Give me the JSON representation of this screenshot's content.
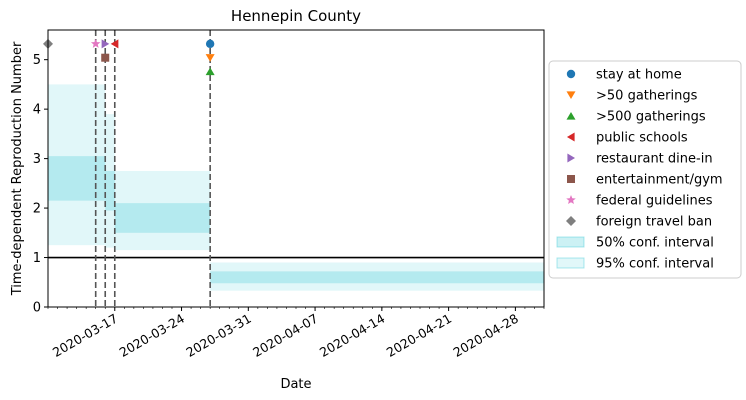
{
  "chart_data": {
    "type": "line",
    "title": "Hennepin County",
    "xlabel": "Date",
    "ylabel": "Time-dependent Reproduction Number",
    "xlim": [
      "2020-03-10",
      "2020-05-01"
    ],
    "ylim": [
      0,
      5.6
    ],
    "x_ticks": [
      "2020-03-17",
      "2020-03-24",
      "2020-03-31",
      "2020-04-07",
      "2020-04-14",
      "2020-04-21",
      "2020-04-28"
    ],
    "y_ticks": [
      0,
      1,
      2,
      3,
      4,
      5
    ],
    "reference_line_y": 1,
    "intervention_lines": [
      "2020-03-15",
      "2020-03-16",
      "2020-03-17",
      "2020-03-27"
    ],
    "interventions": [
      {
        "name": "stay at home",
        "date": "2020-03-27",
        "y": 5.32,
        "marker": "circle",
        "color": "#1f77b4"
      },
      {
        "name": ">50 gatherings",
        "date": "2020-03-27",
        "y": 5.04,
        "marker": "triangle-down",
        "color": "#ff7f0e"
      },
      {
        "name": ">500 gatherings",
        "date": "2020-03-27",
        "y": 4.76,
        "marker": "triangle-up",
        "color": "#2ca02c"
      },
      {
        "name": "public schools",
        "date": "2020-03-17",
        "y": 5.32,
        "marker": "triangle-left",
        "color": "#d62728"
      },
      {
        "name": "restaurant dine-in",
        "date": "2020-03-16",
        "y": 5.32,
        "marker": "triangle-right",
        "color": "#9467bd"
      },
      {
        "name": "entertainment/gym",
        "date": "2020-03-16",
        "y": 5.04,
        "marker": "square",
        "color": "#8c564b"
      },
      {
        "name": "federal guidelines",
        "date": "2020-03-15",
        "y": 5.32,
        "marker": "star",
        "color": "#e377c2"
      },
      {
        "name": "foreign travel ban",
        "date": "2020-03-10",
        "y": 5.32,
        "marker": "diamond",
        "color": "#7f7f7f"
      }
    ],
    "ci_color": "#17becf",
    "segments": [
      {
        "start": "2020-03-10",
        "end": "2020-03-16",
        "ci50": [
          2.15,
          3.05
        ],
        "ci95": [
          1.25,
          4.5
        ]
      },
      {
        "start": "2020-03-16",
        "end": "2020-03-17",
        "ci50": [
          1.95,
          2.75
        ],
        "ci95": [
          1.2,
          3.9
        ]
      },
      {
        "start": "2020-03-17",
        "end": "2020-03-27",
        "ci50": [
          1.5,
          2.1
        ],
        "ci95": [
          1.15,
          2.75
        ]
      },
      {
        "start": "2020-03-27",
        "end": "2020-05-01",
        "ci50": [
          0.48,
          0.72
        ],
        "ci95": [
          0.33,
          0.9
        ]
      }
    ],
    "legend": {
      "placement": "right",
      "entries": [
        "stay at home",
        ">50 gatherings",
        ">500 gatherings",
        "public schools",
        "restaurant dine-in",
        "entertainment/gym",
        "federal guidelines",
        "foreign travel ban",
        "50% conf. interval",
        "95% conf. interval"
      ]
    }
  }
}
